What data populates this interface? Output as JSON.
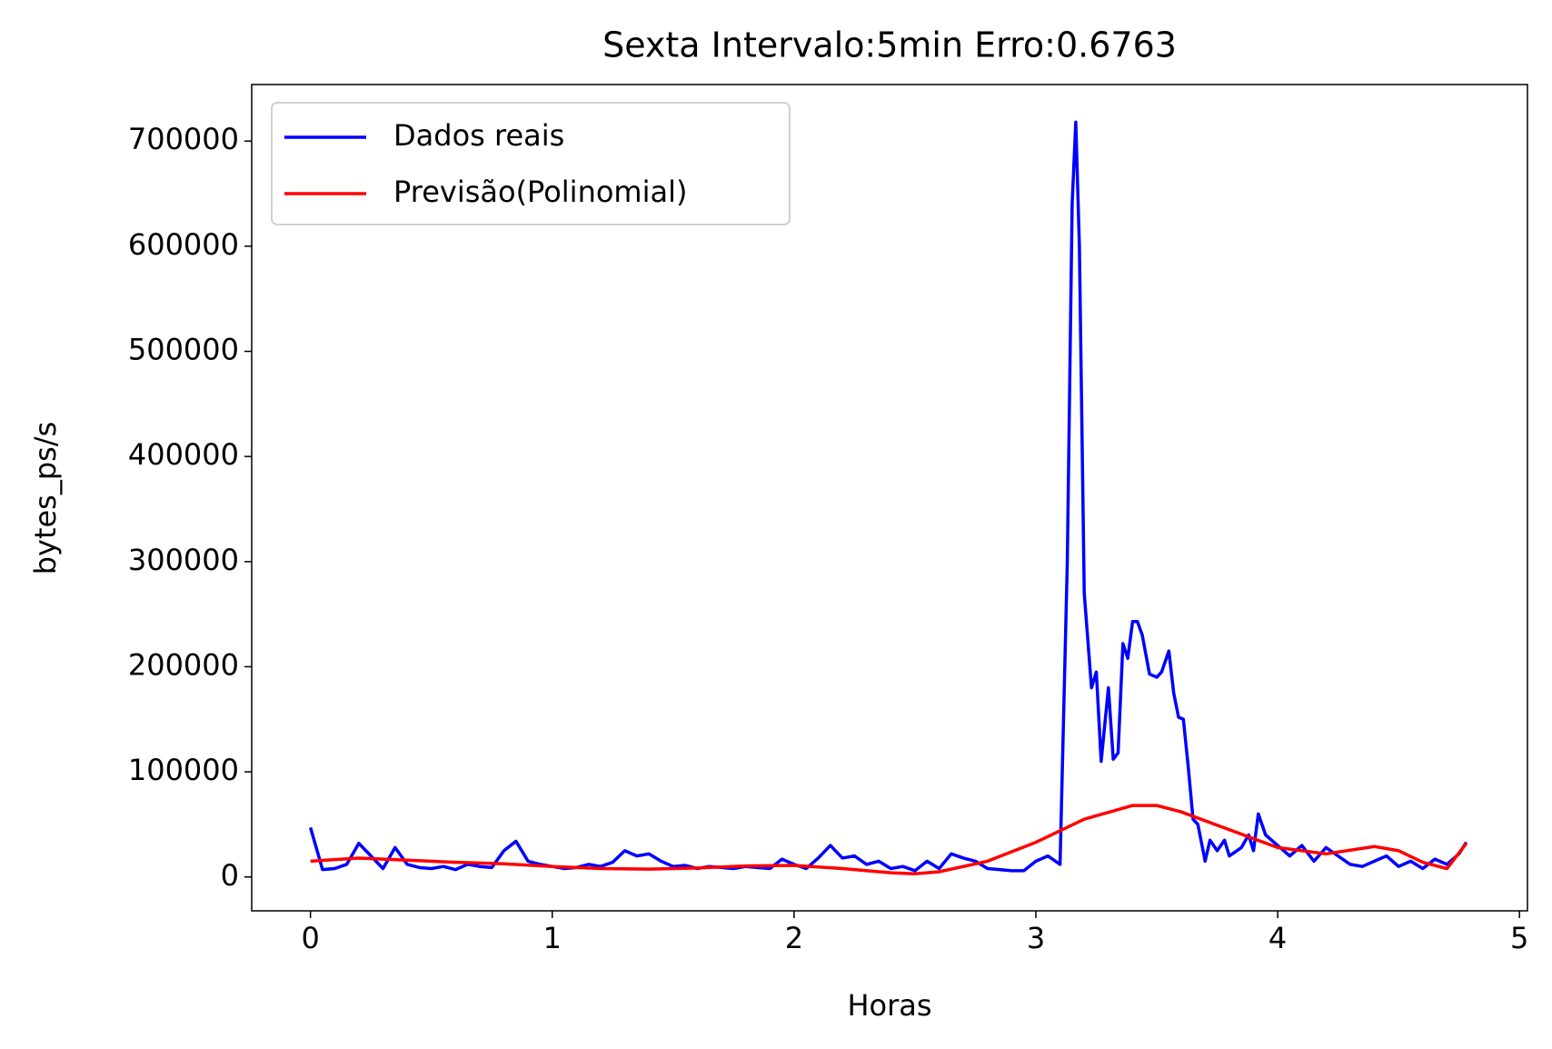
{
  "chart_data": {
    "type": "line",
    "title": "Sexta Intervalo:5min Erro:0.6763",
    "xlabel": "Horas",
    "ylabel": "bytes_ps/s",
    "xlim": [
      -0.243,
      5.033
    ],
    "ylim": [
      -32200,
      753800
    ],
    "xticks": [
      0,
      1,
      2,
      3,
      4,
      5
    ],
    "yticks": [
      0,
      100000,
      200000,
      300000,
      400000,
      500000,
      600000,
      700000
    ],
    "legend": "upper left",
    "series": [
      {
        "name": "Dados reais",
        "color": "#0000ff",
        "x": [
          0,
          0.05,
          0.1,
          0.15,
          0.2,
          0.25,
          0.3,
          0.35,
          0.4,
          0.45,
          0.5,
          0.55,
          0.6,
          0.65,
          0.7,
          0.75,
          0.8,
          0.85,
          0.9,
          0.95,
          1.0,
          1.05,
          1.1,
          1.15,
          1.2,
          1.25,
          1.3,
          1.35,
          1.4,
          1.45,
          1.5,
          1.55,
          1.6,
          1.65,
          1.7,
          1.75,
          1.8,
          1.85,
          1.9,
          1.95,
          2.0,
          2.05,
          2.1,
          2.15,
          2.2,
          2.25,
          2.3,
          2.35,
          2.4,
          2.45,
          2.5,
          2.55,
          2.6,
          2.65,
          2.7,
          2.75,
          2.8,
          2.85,
          2.9,
          2.95,
          3.0,
          3.05,
          3.1,
          3.13,
          3.15,
          3.165,
          3.18,
          3.2,
          3.23,
          3.25,
          3.27,
          3.3,
          3.32,
          3.34,
          3.36,
          3.38,
          3.4,
          3.42,
          3.44,
          3.47,
          3.5,
          3.52,
          3.55,
          3.57,
          3.59,
          3.61,
          3.63,
          3.65,
          3.67,
          3.7,
          3.72,
          3.75,
          3.78,
          3.8,
          3.85,
          3.88,
          3.9,
          3.92,
          3.95,
          4.0,
          4.05,
          4.1,
          4.15,
          4.2,
          4.25,
          4.3,
          4.35,
          4.4,
          4.45,
          4.5,
          4.55,
          4.6,
          4.65,
          4.7,
          4.75,
          4.78
        ],
        "values": [
          47000,
          7000,
          8000,
          12000,
          32000,
          20000,
          8000,
          28000,
          12000,
          9000,
          8000,
          10000,
          7000,
          12000,
          10000,
          9000,
          25000,
          34000,
          15000,
          12000,
          10000,
          8000,
          9000,
          12000,
          10000,
          14000,
          25000,
          20000,
          22000,
          15000,
          10000,
          11000,
          8000,
          10000,
          9000,
          8000,
          10000,
          9000,
          8000,
          17000,
          12000,
          8000,
          18000,
          30000,
          18000,
          20000,
          12000,
          15000,
          8000,
          10000,
          6000,
          15000,
          8000,
          22000,
          18000,
          15000,
          8000,
          7000,
          6000,
          6000,
          15000,
          20000,
          12000,
          300000,
          640000,
          718000,
          600000,
          270000,
          180000,
          195000,
          110000,
          180000,
          112000,
          118000,
          222000,
          208000,
          243000,
          243000,
          230000,
          193000,
          190000,
          195000,
          215000,
          175000,
          152000,
          150000,
          105000,
          55000,
          50000,
          15000,
          35000,
          25000,
          35000,
          20000,
          28000,
          40000,
          25000,
          60000,
          40000,
          30000,
          20000,
          30000,
          15000,
          28000,
          20000,
          12000,
          10000,
          15000,
          20000,
          10000,
          15000,
          8000,
          17000,
          12000,
          22000,
          33000
        ]
      },
      {
        "name": "Previsão(Polinomial)",
        "color": "#ff0000",
        "x": [
          0,
          0.2,
          0.4,
          0.6,
          0.8,
          1.0,
          1.2,
          1.4,
          1.6,
          1.8,
          2.0,
          2.2,
          2.4,
          2.5,
          2.6,
          2.8,
          3.0,
          3.2,
          3.4,
          3.5,
          3.6,
          3.8,
          4.0,
          4.2,
          4.4,
          4.5,
          4.6,
          4.7,
          4.78
        ],
        "values": [
          15000,
          18000,
          16000,
          14000,
          12500,
          10000,
          8000,
          7500,
          8500,
          10500,
          11000,
          8000,
          4000,
          3000,
          5000,
          15000,
          33000,
          55000,
          68000,
          68000,
          62000,
          45000,
          28000,
          22000,
          29000,
          25000,
          14000,
          8000,
          32000
        ]
      }
    ]
  }
}
